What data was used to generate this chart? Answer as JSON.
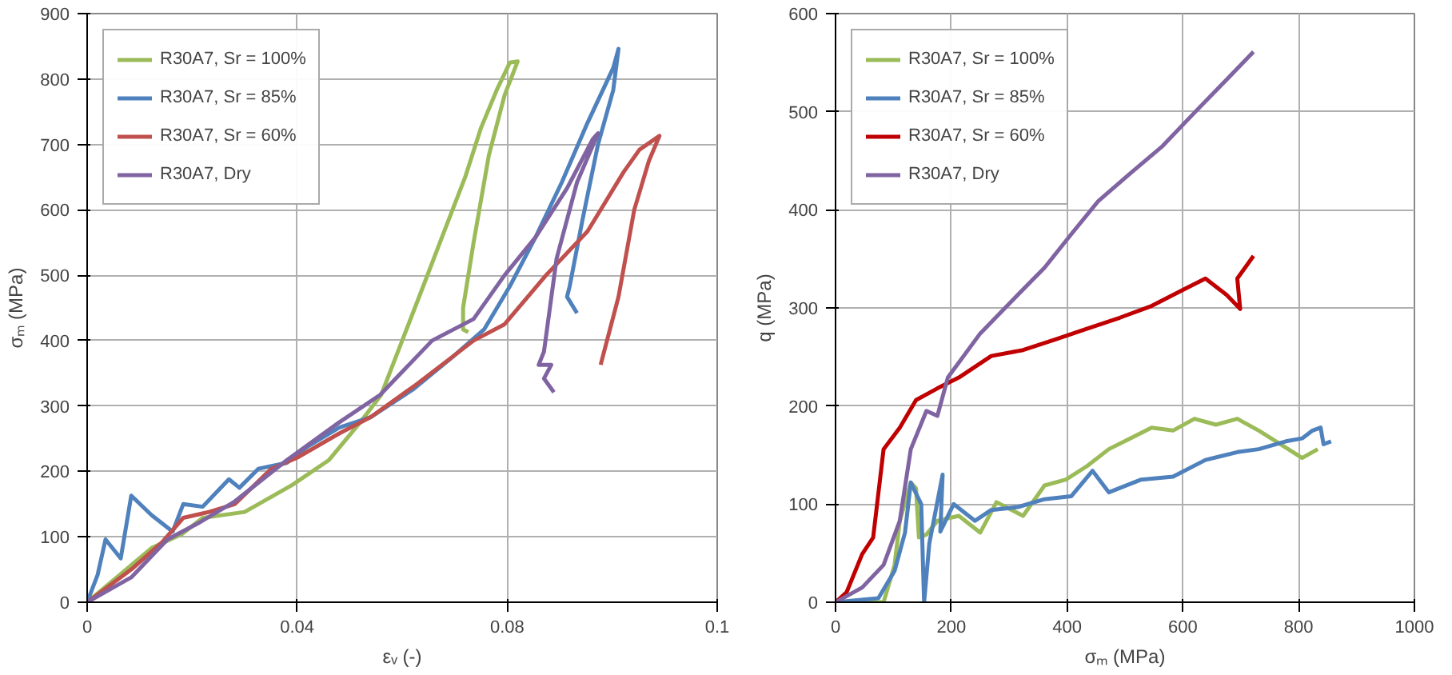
{
  "chart_data": [
    {
      "type": "line",
      "xlabel": "εᵥ (-)",
      "ylabel": "σₘ (MPa)",
      "xlim": [
        0,
        0.12
      ],
      "ylim": [
        0,
        900
      ],
      "xticks": [
        0,
        0.04,
        0.08,
        {
          "value": 0.12,
          "label": "0.1"
        }
      ],
      "yticks": [
        0,
        100,
        200,
        300,
        400,
        500,
        600,
        700,
        800,
        900
      ],
      "grid": true,
      "legend": "top left",
      "line_style": "solid",
      "series": [
        {
          "name": "R30A7, Sr = 100%",
          "color": "#9bbb59",
          "x": [
            0,
            0.0123,
            0.018,
            0.022,
            0.03,
            0.039,
            0.046,
            0.052,
            0.056,
            0.06,
            0.064,
            0.068,
            0.072,
            0.075,
            0.078,
            0.0805,
            0.082,
            0.0795,
            0.0765,
            0.0736,
            0.0716,
            0.0716,
            0.0726
          ],
          "values": [
            0,
            83,
            104,
            129,
            138,
            179,
            217,
            275,
            317,
            400,
            483,
            567,
            650,
            725,
            783,
            825,
            827,
            775,
            683,
            550,
            450,
            417,
            413
          ]
        },
        {
          "name": "R30A7, Sr = 85%",
          "color": "#4f81bd",
          "x": [
            0,
            0.002,
            0.0035,
            0.0064,
            0.0084,
            0.0123,
            0.0163,
            0.0183,
            0.022,
            0.027,
            0.029,
            0.0326,
            0.038,
            0.042,
            0.048,
            0.054,
            0.062,
            0.0696,
            0.0756,
            0.0805,
            0.0854,
            0.0904,
            0.0953,
            0.1002,
            0.1012,
            0.1002,
            0.0973,
            0.0943,
            0.0919,
            0.0914,
            0.0933
          ],
          "values": [
            0,
            42,
            96,
            67,
            163,
            133,
            108,
            150,
            146,
            188,
            175,
            204,
            213,
            238,
            267,
            283,
            325,
            375,
            417,
            483,
            558,
            642,
            733,
            817,
            846,
            783,
            700,
            583,
            483,
            467,
            442
          ]
        },
        {
          "name": "R30A7, Sr = 60%",
          "color": "#c0504d",
          "x": [
            0,
            0.0084,
            0.0143,
            0.0183,
            0.0232,
            0.0281,
            0.0351,
            0.04,
            0.048,
            0.054,
            0.0627,
            0.0736,
            0.0795,
            0.0874,
            0.0953,
            0.1022,
            0.1052,
            0.109,
            0.107,
            0.1042,
            0.1012,
            0.0978
          ],
          "values": [
            0,
            50,
            92,
            129,
            138,
            150,
            204,
            221,
            258,
            283,
            333,
            400,
            425,
            500,
            567,
            658,
            692,
            713,
            675,
            600,
            467,
            363
          ]
        },
        {
          "name": "R30A7, Dry",
          "color": "#8064a2",
          "x": [
            0,
            0.0084,
            0.0153,
            0.0212,
            0.0281,
            0.038,
            0.048,
            0.0558,
            0.0657,
            0.0736,
            0.0795,
            0.0854,
            0.0914,
            0.0963,
            0.0973,
            0.0933,
            0.0894,
            0.087,
            0.086,
            0.0884,
            0.087,
            0.0889
          ],
          "values": [
            0,
            38,
            96,
            121,
            154,
            217,
            275,
            317,
            400,
            433,
            500,
            558,
            633,
            708,
            717,
            642,
            525,
            383,
            363,
            363,
            342,
            321
          ]
        }
      ]
    },
    {
      "type": "line",
      "xlabel": "σₘ (MPa)",
      "ylabel": "q (MPa)",
      "xlim": [
        0,
        1000
      ],
      "ylim": [
        0,
        600
      ],
      "xticks": [
        0,
        200,
        400,
        600,
        800,
        1000
      ],
      "yticks": [
        0,
        100,
        200,
        300,
        400,
        500,
        600
      ],
      "grid": true,
      "legend": "top left",
      "line_style": "solid",
      "series": [
        {
          "name": "R30A7, Sr = 100%",
          "color": "#9bbb59",
          "x": [
            0,
            83,
            102,
            111,
            130,
            139,
            144,
            157,
            176,
            213,
            250,
            278,
            324,
            361,
            398,
            435,
            472,
            509,
            546,
            583,
            620,
            657,
            694,
            731,
            769,
            806,
            833
          ],
          "values": [
            0,
            0,
            38,
            83,
            122,
            116,
            66,
            69,
            83,
            88,
            71,
            102,
            88,
            119,
            125,
            139,
            156,
            167,
            178,
            175,
            187,
            181,
            187,
            175,
            161,
            147,
            156
          ]
        },
        {
          "name": "R30A7, Sr = 85%",
          "color": "#4f81bd",
          "x": [
            0,
            74,
            102,
            120,
            130,
            148,
            153,
            162,
            185,
            181,
            204,
            241,
            269,
            315,
            361,
            407,
            444,
            472,
            528,
            583,
            639,
            694,
            731,
            778,
            806,
            824,
            838,
            843,
            856
          ],
          "values": [
            0,
            4,
            32,
            71,
            122,
            100,
            0,
            60,
            130,
            72,
            100,
            83,
            94,
            97,
            105,
            108,
            134,
            112,
            125,
            128,
            145,
            153,
            156,
            164,
            167,
            175,
            178,
            161,
            164
          ]
        },
        {
          "name": "R30A7, Sr = 60%",
          "color": "#c00000",
          "x": [
            0,
            19,
            46,
            65,
            83,
            111,
            139,
            176,
            213,
            269,
            324,
            380,
            435,
            491,
            546,
            602,
            639,
            676,
            699,
            694,
            722
          ],
          "values": [
            0,
            10,
            49,
            66,
            156,
            178,
            206,
            218,
            229,
            251,
            257,
            268,
            279,
            290,
            302,
            319,
            330,
            313,
            299,
            330,
            353
          ]
        },
        {
          "name": "R30A7, Dry",
          "color": "#8064a2",
          "x": [
            0,
            46,
            83,
            111,
            130,
            157,
            176,
            194,
            250,
            306,
            361,
            407,
            454,
            509,
            565,
            620,
            676,
            722
          ],
          "values": [
            0,
            15,
            38,
            83,
            156,
            195,
            190,
            229,
            274,
            308,
            341,
            375,
            409,
            437,
            465,
            499,
            533,
            561
          ]
        }
      ]
    }
  ]
}
